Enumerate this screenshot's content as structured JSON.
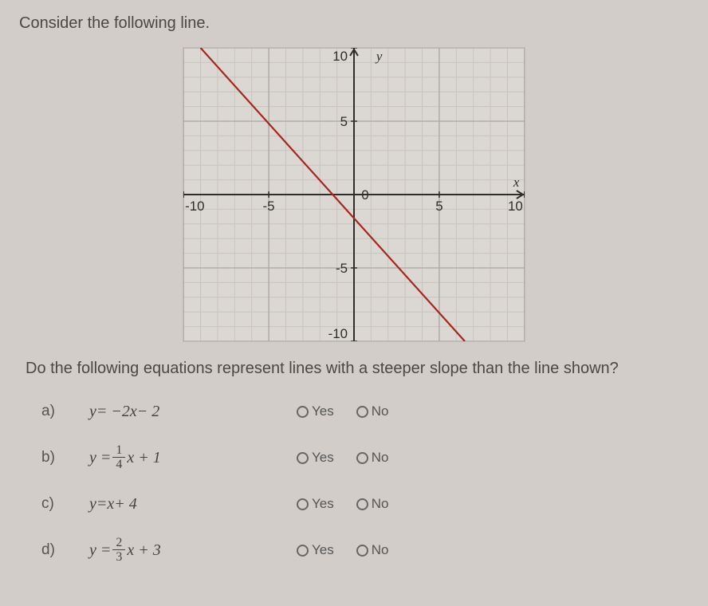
{
  "prompt": "Consider the following line.",
  "question": "Do the following equations represent lines with a steeper slope than the line shown?",
  "graph": {
    "xmin": -10,
    "xmax": 10,
    "ymin": -10,
    "ymax": 10,
    "major_step": 5,
    "minor_step": 1,
    "x_ticks": [
      -10,
      -5,
      0,
      5,
      10
    ],
    "y_ticks": [
      -10,
      -5,
      5,
      10
    ],
    "x_axis_label": "x",
    "y_axis_label": "y",
    "bg_color": "#dbd7d2",
    "minor_grid_color": "#c9c4bf",
    "major_grid_color": "#aba6a1",
    "axis_color": "#2f2d2b",
    "line_color": "#a5261f",
    "line_width": 2.2,
    "line_points": [
      [
        -9,
        10
      ],
      [
        6.5,
        -10
      ]
    ],
    "tick_fontsize": 17
  },
  "options": [
    {
      "letter": "a)",
      "equation_plain": "y = −2x − 2"
    },
    {
      "letter": "b)",
      "equation_frac": {
        "pre": "y = ",
        "num": "1",
        "den": "4",
        "post": "x + 1"
      }
    },
    {
      "letter": "c)",
      "equation_plain": "y = x + 4"
    },
    {
      "letter": "d)",
      "equation_frac": {
        "pre": "y = ",
        "num": "2",
        "den": "3",
        "post": "x + 3"
      }
    }
  ],
  "yn": {
    "yes": "Yes",
    "no": "No"
  }
}
